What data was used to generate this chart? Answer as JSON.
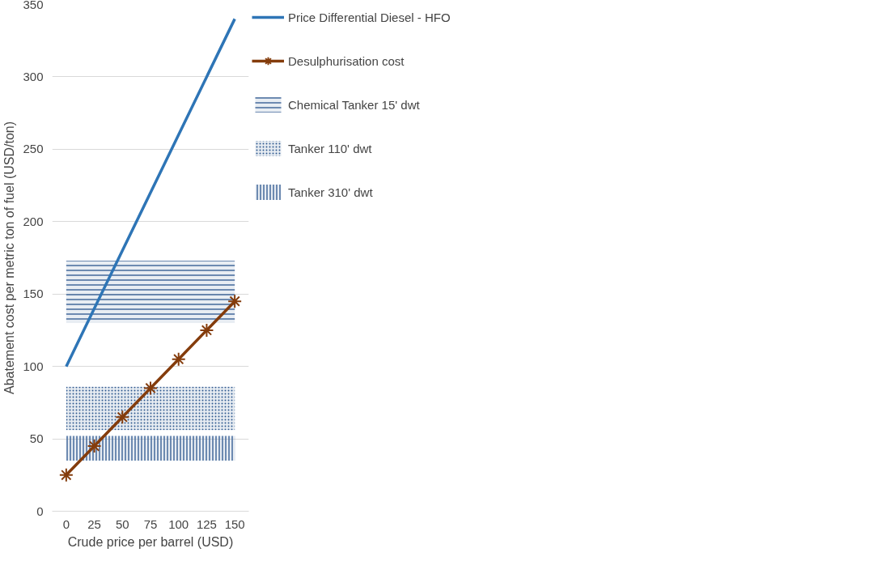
{
  "chart_data": {
    "type": "line",
    "xlabel": "Crude price per barrel (USD)",
    "ylabel": "Abatement cost per metric ton of fuel (USD/ton)",
    "categories": [
      "0",
      "25",
      "50",
      "75",
      "100",
      "125",
      "150"
    ],
    "series": [
      {
        "name": "Price Differential Diesel - HFO",
        "color": "#2e75b6",
        "marker": "none",
        "values": [
          100,
          140,
          180,
          220,
          260,
          300,
          340
        ]
      },
      {
        "name": "Desulphurisation cost",
        "color": "#843c0c",
        "marker": "cross",
        "values": [
          25,
          45,
          65,
          85,
          105,
          125,
          145
        ]
      }
    ],
    "bands": [
      {
        "axis": "y",
        "from": 130,
        "to": 173,
        "label": "Chemical Tanker 15' dwt",
        "color": "#44699b"
      },
      {
        "axis": "y",
        "from": 56,
        "to": 86,
        "label": "Tanker 110' dwt",
        "color": "#2f5a8f"
      },
      {
        "axis": "y",
        "from": 35,
        "to": 52,
        "label": "Tanker 310' dwt",
        "color": "#44699b"
      }
    ],
    "ylim": [
      0,
      350
    ],
    "yticks": [
      0,
      50,
      100,
      150,
      200,
      250,
      300,
      350
    ],
    "grid": "y",
    "legend": "right",
    "line_style": "solid"
  }
}
